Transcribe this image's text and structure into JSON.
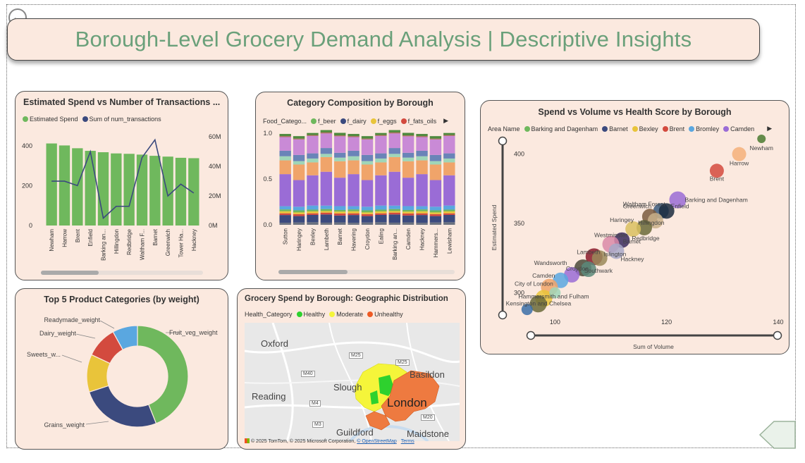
{
  "title": "Borough-Level Grocery Demand Analysis | Descriptive Insights",
  "back_icon": "back-arrow-icon",
  "next_icon": "next-page-arrow-icon",
  "colors": {
    "title_text": "#6aa07a",
    "card_bg": "#fbe9df",
    "bar_green": "#6fb85d",
    "line_navy": "#3b4a7e"
  },
  "bar_line_chart": {
    "title": "Estimated Spend vs Number of Transactions ...",
    "legend": [
      {
        "label": "Estimated Spend",
        "color": "#6fb85d"
      },
      {
        "label": "Sum of num_transactions",
        "color": "#3b4a7e"
      }
    ],
    "left_axis_ticks": [
      "400",
      "200",
      "0"
    ],
    "right_axis_ticks": [
      "60M",
      "40M",
      "20M",
      "0M"
    ]
  },
  "stacked_chart": {
    "title": "Category Composition by Borough",
    "legend_header": "Food_Catego...",
    "legend": [
      {
        "label": "f_beer",
        "color": "#6fb85d"
      },
      {
        "label": "f_dairy",
        "color": "#3b4a7e"
      },
      {
        "label": "f_eggs",
        "color": "#e9c43a"
      },
      {
        "label": "f_fats_oils",
        "color": "#d34a3e"
      }
    ],
    "y_ticks": [
      "1.0",
      "0.5",
      "0.0"
    ]
  },
  "scatter_chart": {
    "title": "Spend vs Volume vs Health Score by Borough",
    "legend_header": "Area Name",
    "legend": [
      {
        "label": "Barking and Dagenham",
        "color": "#6fb85d"
      },
      {
        "label": "Barnet",
        "color": "#3b4a7e"
      },
      {
        "label": "Bexley",
        "color": "#e9c43a"
      },
      {
        "label": "Brent",
        "color": "#d34a3e"
      },
      {
        "label": "Bromley",
        "color": "#5aa7e0"
      },
      {
        "label": "Camden",
        "color": "#9a6cd6"
      }
    ],
    "y_label": "Estimated Spend",
    "x_label": "Sum of Volume",
    "y_ticks": [
      "400",
      "350",
      "300"
    ],
    "x_ticks": [
      "100",
      "120",
      "140"
    ]
  },
  "donut_chart": {
    "title": "Top 5 Product Categories (by weight)"
  },
  "map_chart": {
    "title": "Grocery Spend by Borough: Geographic Distribution",
    "legend_header": "Health_Category",
    "legend": [
      {
        "label": "Healthy",
        "color": "#2ed12e"
      },
      {
        "label": "Moderate",
        "color": "#f5f53a"
      },
      {
        "label": "Unhealthy",
        "color": "#ee5a24"
      }
    ],
    "places": [
      "Oxford",
      "Reading",
      "Slough",
      "Basildon",
      "London",
      "Guildford",
      "Maidstone"
    ],
    "roads": [
      "M25",
      "M40",
      "M4",
      "M3",
      "M20",
      "M25"
    ],
    "credit": "© 2025 TomTom, © 2025 Microsoft Corporation,",
    "credit_osm": "© OpenStreetMap",
    "credit_terms": "Terms"
  },
  "chart_data": [
    {
      "type": "bar",
      "title": "Estimated Spend vs Number of Transactions ...",
      "categories": [
        "Newham",
        "Harrow",
        "Brent",
        "Enfield",
        "Barking an...",
        "Hillingdon",
        "Redbridge",
        "Waltham F...",
        "Barnet",
        "Greenwich",
        "Tower Ha...",
        "Hackney"
      ],
      "series": [
        {
          "name": "Estimated Spend",
          "axis": "left",
          "values": [
            412,
            402,
            388,
            375,
            368,
            362,
            360,
            356,
            350,
            346,
            340,
            338
          ]
        },
        {
          "name": "Sum of num_transactions",
          "axis": "right",
          "type": "line",
          "values": [
            30,
            30,
            27,
            50,
            5,
            13,
            13,
            46,
            58,
            20,
            28,
            22
          ]
        }
      ],
      "ylim": [
        0,
        460
      ],
      "y2lim": [
        0,
        62
      ],
      "y2_unit": "M",
      "scrollable": true
    },
    {
      "type": "bar",
      "stacked": "100%",
      "title": "Category Composition by Borough",
      "categories": [
        "Sutton",
        "Haringey",
        "Bexley",
        "Lambeth",
        "Barnet",
        "Havering",
        "Croydon",
        "Ealing",
        "Barking an...",
        "Camden",
        "Hackney",
        "Hammers...",
        "Lewisham"
      ],
      "segment_palette": [
        "#6b7280",
        "#3b4a7e",
        "#d34a3e",
        "#e9c43a",
        "#6fb85d",
        "#5aa7e0",
        "#9a6cd6",
        "#f0a46a",
        "#9fd6b8",
        "#6a84b8",
        "#c98ad6",
        "#aa6b5a",
        "#4f8a3e"
      ],
      "series_profile": [
        0.025,
        0.08,
        0.02,
        0.02,
        0.02,
        0.04,
        0.33,
        0.16,
        0.04,
        0.06,
        0.17,
        0.01,
        0.025
      ],
      "ylim": [
        0,
        1.0
      ],
      "scrollable": true
    },
    {
      "type": "scatter",
      "title": "Spend vs Volume vs Health Score by Borough",
      "x_label": "Sum of Volume",
      "y_label": "Estimated Spend",
      "xlim": [
        92,
        140
      ],
      "ylim": [
        284,
        410
      ],
      "points": [
        {
          "label": "Newham",
          "x": 137,
          "y": 411,
          "color": "#4a7a30",
          "r": 6
        },
        {
          "label": "",
          "x": 133,
          "y": 400,
          "color": "#f5b07a",
          "r": 10
        },
        {
          "label": "Harrow",
          "x": 133,
          "y": 400,
          "color": "#f5b07a",
          "r": 0
        },
        {
          "label": "Brent",
          "x": 129,
          "y": 388,
          "color": "#d34a3e",
          "r": 10
        },
        {
          "label": "Barking and Dagenham",
          "x": 122,
          "y": 367,
          "color": "#9a6cd6",
          "r": 12
        },
        {
          "label": "Waltham Forest",
          "x": 119,
          "y": 359,
          "color": "#3a5a7e",
          "r": 11
        },
        {
          "label": "Enfield",
          "x": 120,
          "y": 359,
          "color": "#1a2a3e",
          "r": 11
        },
        {
          "label": "Greenwich",
          "x": 117,
          "y": 355,
          "color": "#7a5a3e",
          "r": 11
        },
        {
          "label": "Hillingdon",
          "x": 118,
          "y": 352,
          "color": "#c9b08a",
          "r": 11
        },
        {
          "label": "Redbridge",
          "x": 116,
          "y": 347,
          "color": "#6a6a3a",
          "r": 11
        },
        {
          "label": "Haringey",
          "x": 114,
          "y": 346,
          "color": "#d9c060",
          "r": 11
        },
        {
          "label": "Barnet",
          "x": 112,
          "y": 338,
          "color": "#3a2a5e",
          "r": 11
        },
        {
          "label": "Westminster",
          "x": 110,
          "y": 335,
          "color": "#d98aa8",
          "r": 12
        },
        {
          "label": "Hackney",
          "x": 111,
          "y": 330,
          "color": "#a8a8c8",
          "r": 11
        },
        {
          "label": "Lambeth",
          "x": 107,
          "y": 326,
          "color": "#8a1a2a",
          "r": 12
        },
        {
          "label": "Islington",
          "x": 108,
          "y": 325,
          "color": "#9a8a5a",
          "r": 11
        },
        {
          "label": "Croydon",
          "x": 105,
          "y": 318,
          "color": "#4a4a3a",
          "r": 12
        },
        {
          "label": "Southwark",
          "x": 106,
          "y": 317,
          "color": "#5a8a7a",
          "r": 11
        },
        {
          "label": "Wandsworth",
          "x": 103,
          "y": 313,
          "color": "#9a6cd6",
          "r": 11
        },
        {
          "label": "Camden",
          "x": 101,
          "y": 309,
          "color": "#5aa7e0",
          "r": 11
        },
        {
          "label": "City of London",
          "x": 99,
          "y": 304,
          "color": "#f0a46a",
          "r": 12
        },
        {
          "label": "Hammersmith and Fulham",
          "x": 98,
          "y": 296,
          "color": "#e9c43a",
          "r": 12
        },
        {
          "label": "Kensington and Chelsea",
          "x": 97,
          "y": 292,
          "color": "#6a6a3a",
          "r": 12
        },
        {
          "label": "",
          "x": 95,
          "y": 288,
          "color": "#3b6ea8",
          "r": 8
        },
        {
          "label": "",
          "x": 100,
          "y": 300,
          "color": "#9fd6b8",
          "r": 8
        }
      ]
    },
    {
      "type": "pie",
      "donut": true,
      "title": "Top 5 Product Categories (by weight)",
      "slices": [
        {
          "label": "Fruit_veg_weight",
          "value": 44,
          "color": "#6fb85d"
        },
        {
          "label": "Grains_weight",
          "value": 26,
          "color": "#3b4a7e"
        },
        {
          "label": "Sweets_w...",
          "value": 12,
          "color": "#e9c43a"
        },
        {
          "label": "Dairy_weight",
          "value": 10,
          "color": "#d34a3e"
        },
        {
          "label": "Readymade_weight",
          "value": 8,
          "color": "#5aa7e0"
        }
      ]
    }
  ]
}
